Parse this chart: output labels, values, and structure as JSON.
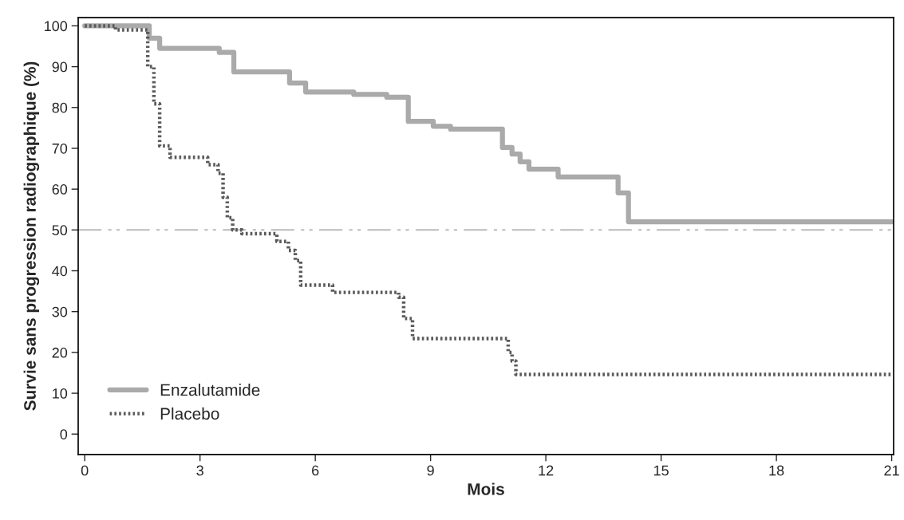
{
  "chart_data": {
    "type": "step",
    "xlabel": "Mois",
    "ylabel": "Survie sans progression radiographique (%)",
    "xlim": [
      -0.17,
      21.05
    ],
    "xticks": [
      0,
      3,
      6,
      9,
      12,
      15,
      18,
      21
    ],
    "ylim": [
      -5,
      102
    ],
    "yticks": [
      0,
      10,
      20,
      30,
      40,
      50,
      60,
      70,
      80,
      90,
      100
    ],
    "grid": false,
    "legend": "bottom left",
    "series": [
      {
        "name": "Enzalutamide",
        "color": "#aaaaaa",
        "line_style": "solid",
        "x": [
          0,
          1.68,
          1.95,
          3.5,
          3.88,
          5.33,
          5.75,
          7.0,
          7.86,
          8.42,
          9.07,
          9.52,
          10.87,
          11.12,
          11.33,
          11.56,
          12.32,
          13.88,
          14.15,
          21
        ],
        "values": [
          100,
          97,
          94.5,
          93.5,
          88.7,
          86,
          83.8,
          83.2,
          82.5,
          76.6,
          75.4,
          74.7,
          70.2,
          68.6,
          66.7,
          64.9,
          63.0,
          59.1,
          52.0,
          52.0
        ]
      },
      {
        "name": "Placebo",
        "color": "#5a5a5a",
        "line_style": "dotted",
        "x": [
          0,
          0.8,
          1.64,
          1.8,
          1.95,
          2.22,
          3.2,
          3.47,
          3.6,
          3.71,
          3.85,
          4.09,
          5.0,
          5.3,
          5.48,
          5.62,
          6.45,
          8.17,
          8.3,
          8.53,
          11.02,
          11.12,
          11.22,
          21
        ],
        "values": [
          100,
          99,
          90,
          80.9,
          70.6,
          67.8,
          66,
          63.9,
          58,
          53,
          50,
          49.1,
          47.2,
          45,
          42.5,
          36.5,
          34.7,
          33.5,
          28.3,
          23.4,
          20,
          17.9,
          14.6,
          14.6
        ]
      }
    ],
    "ref_lines": [
      {
        "axis": "y",
        "value": 50,
        "color": "#bbbbbb",
        "line_style": "dashdot"
      }
    ]
  }
}
